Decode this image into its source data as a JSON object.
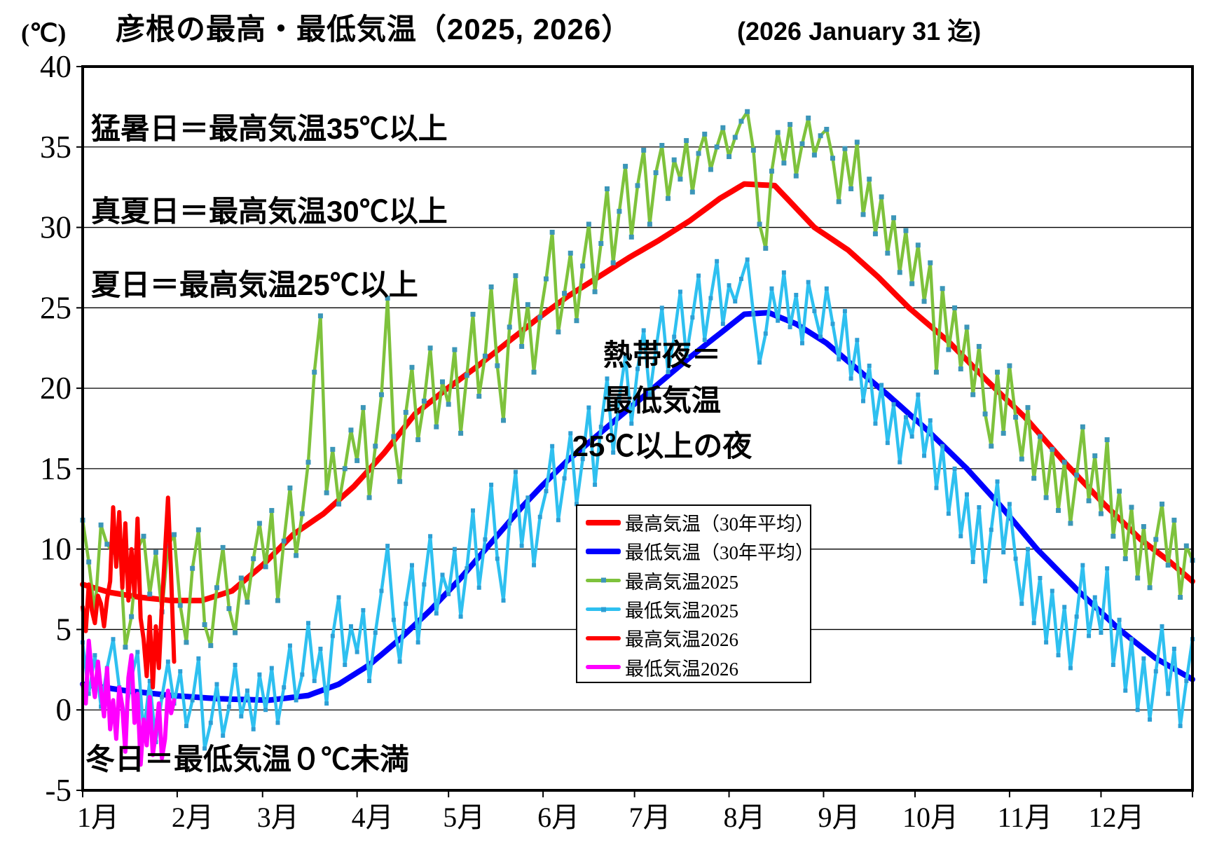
{
  "title": "彦根の最高・最低気温（2025, 2026）",
  "subtitle": "(2026 January 31 迄)",
  "unit_label": "(℃)",
  "annotations": {
    "moushobi": "猛暑日＝最高気温35℃以上",
    "manatsubi": "真夏日＝最高気温30℃以上",
    "natsubi": "夏日＝最高気温25℃以上",
    "nettaiya_lines": [
      "熱帯夜＝",
      "最低気温",
      "25℃以上の夜"
    ],
    "fuyubi": "冬日＝最低気温０℃未満"
  },
  "legend": {
    "items": [
      {
        "label": "最高気温（30年平均）",
        "color": "#FF0000",
        "line_width": 8,
        "marker_color": null
      },
      {
        "label": "最低気温（30年平均）",
        "color": "#0000FF",
        "line_width": 8,
        "marker_color": null
      },
      {
        "label": "最高気温2025",
        "color": "#7EC23C",
        "line_width": 5,
        "marker_color": "#3C96B8"
      },
      {
        "label": "最低気温2025",
        "color": "#2EC0F0",
        "line_width": 5,
        "marker_color": "#2E9FD4"
      },
      {
        "label": "最高気温2026",
        "color": "#FF0000",
        "line_width": 6,
        "marker_color": null
      },
      {
        "label": "最低気温2026",
        "color": "#FF00FF",
        "line_width": 6,
        "marker_color": null
      }
    ]
  },
  "chart_data": {
    "type": "line",
    "title": "彦根の最高・最低気温（2025, 2026）",
    "subtitle": "(2026 January 31 迄)",
    "ylabel": "(℃)",
    "ylim": [
      -5,
      40
    ],
    "ytick_step": 5,
    "ytick_labels": [
      "40",
      "35",
      "30",
      "25",
      "20",
      "15",
      "10",
      "5",
      "0",
      "-5"
    ],
    "x_months": [
      "1月",
      "2月",
      "3月",
      "4月",
      "5月",
      "6月",
      "7月",
      "8月",
      "9月",
      "10月",
      "11月",
      "12月"
    ],
    "month_start_days": [
      1,
      32,
      60,
      91,
      121,
      152,
      182,
      213,
      244,
      274,
      305,
      335
    ],
    "days_in_year": 365,
    "grid": "horizontal-only",
    "legend_position": "center-right-box",
    "series": [
      {
        "id": "avg_high",
        "name": "最高気温（30年平均）",
        "color": "#FF0000",
        "width": 8,
        "marker": null,
        "points": [
          [
            1,
            7.8
          ],
          [
            10,
            7.3
          ],
          [
            20,
            7.0
          ],
          [
            30,
            6.8
          ],
          [
            40,
            6.8
          ],
          [
            50,
            7.4
          ],
          [
            60,
            9.0
          ],
          [
            70,
            10.9
          ],
          [
            80,
            12.2
          ],
          [
            90,
            13.9
          ],
          [
            100,
            16.0
          ],
          [
            110,
            18.4
          ],
          [
            120,
            19.9
          ],
          [
            130,
            21.3
          ],
          [
            140,
            22.8
          ],
          [
            150,
            24.3
          ],
          [
            160,
            25.7
          ],
          [
            170,
            26.9
          ],
          [
            180,
            28.1
          ],
          [
            190,
            29.2
          ],
          [
            200,
            30.4
          ],
          [
            210,
            31.8
          ],
          [
            218,
            32.7
          ],
          [
            228,
            32.6
          ],
          [
            241,
            30.0
          ],
          [
            252,
            28.6
          ],
          [
            262,
            26.9
          ],
          [
            272,
            25.0
          ],
          [
            285,
            22.9
          ],
          [
            298,
            20.4
          ],
          [
            310,
            18.2
          ],
          [
            323,
            15.4
          ],
          [
            336,
            12.8
          ],
          [
            348,
            10.6
          ],
          [
            357,
            9.3
          ],
          [
            365,
            8.0
          ]
        ]
      },
      {
        "id": "avg_low",
        "name": "最低気温（30年平均）",
        "color": "#0000FF",
        "width": 8,
        "marker": null,
        "points": [
          [
            1,
            1.6
          ],
          [
            15,
            1.2
          ],
          [
            30,
            0.9
          ],
          [
            45,
            0.7
          ],
          [
            62,
            0.6
          ],
          [
            75,
            0.9
          ],
          [
            85,
            1.6
          ],
          [
            95,
            2.8
          ],
          [
            105,
            4.4
          ],
          [
            115,
            6.2
          ],
          [
            125,
            8.2
          ],
          [
            135,
            10.4
          ],
          [
            145,
            12.6
          ],
          [
            152,
            14.0
          ],
          [
            160,
            15.5
          ],
          [
            170,
            17.1
          ],
          [
            180,
            18.7
          ],
          [
            190,
            20.3
          ],
          [
            200,
            21.9
          ],
          [
            210,
            23.4
          ],
          [
            218,
            24.6
          ],
          [
            226,
            24.7
          ],
          [
            235,
            24.0
          ],
          [
            245,
            22.8
          ],
          [
            255,
            21.2
          ],
          [
            265,
            19.6
          ],
          [
            278,
            17.4
          ],
          [
            291,
            15.0
          ],
          [
            302,
            12.7
          ],
          [
            314,
            10.0
          ],
          [
            327,
            7.5
          ],
          [
            341,
            5.0
          ],
          [
            353,
            3.2
          ],
          [
            365,
            1.9
          ]
        ]
      },
      {
        "id": "high_2025",
        "name": "最高気温2025",
        "color": "#7EC23C",
        "width": 4.5,
        "marker": {
          "color": "#3C96B8",
          "size": 7
        },
        "x_start": 1,
        "x_step": 2,
        "values": [
          11.8,
          9.2,
          6.0,
          11.5,
          10.3,
          9.8,
          10.6,
          3.9,
          5.8,
          10.0,
          10.8,
          7.2,
          9.8,
          6.1,
          10.2,
          10.9,
          6.5,
          4.2,
          8.8,
          11.2,
          5.3,
          4.0,
          7.6,
          10.1,
          6.3,
          4.8,
          8.2,
          6.7,
          9.4,
          11.6,
          8.9,
          12.4,
          6.8,
          10.5,
          13.8,
          9.6,
          12.2,
          15.4,
          21.0,
          24.5,
          13.5,
          16.2,
          12.8,
          15.0,
          17.4,
          15.5,
          18.8,
          13.2,
          16.4,
          19.6,
          25.6,
          17.0,
          14.2,
          18.5,
          21.3,
          16.8,
          19.2,
          22.5,
          17.6,
          20.4,
          19.0,
          22.4,
          17.2,
          20.8,
          24.6,
          19.5,
          22.0,
          26.3,
          21.4,
          18.0,
          23.8,
          27.0,
          22.6,
          25.2,
          21.0,
          24.4,
          26.8,
          29.7,
          23.5,
          25.9,
          28.4,
          24.2,
          27.6,
          30.2,
          26.0,
          29.0,
          32.4,
          27.8,
          31.0,
          33.8,
          29.4,
          32.6,
          34.8,
          30.2,
          33.4,
          35.1,
          31.8,
          34.2,
          33.0,
          35.4,
          32.2,
          34.6,
          35.8,
          33.6,
          35.0,
          36.2,
          34.4,
          35.6,
          36.6,
          37.2,
          34.8,
          30.2,
          28.7,
          33.5,
          35.9,
          34.0,
          36.4,
          33.2,
          35.2,
          36.8,
          34.5,
          35.7,
          36.1,
          34.3,
          31.6,
          34.9,
          32.4,
          35.3,
          30.8,
          33.0,
          29.6,
          31.9,
          28.4,
          30.6,
          27.2,
          29.8,
          26.5,
          28.9,
          25.4,
          27.8,
          21.0,
          26.2,
          22.4,
          25.0,
          21.2,
          23.8,
          19.6,
          22.6,
          18.4,
          16.4,
          21.0,
          17.2,
          21.4,
          18.2,
          15.6,
          18.8,
          14.4,
          17.0,
          13.2,
          16.2,
          12.4,
          15.4,
          11.6,
          14.6,
          17.6,
          13.0,
          15.8,
          12.2,
          16.8,
          10.8,
          13.6,
          9.4,
          12.6,
          8.2,
          11.4,
          7.6,
          10.6,
          12.8,
          9.0,
          11.8,
          7.0,
          10.2,
          9.3
        ]
      },
      {
        "id": "low_2025",
        "name": "最低気温2025",
        "color": "#2EC0F0",
        "width": 4.5,
        "marker": {
          "color": "#2E9FD4",
          "size": 6
        },
        "x_start": 1,
        "x_step": 2,
        "values": [
          4.2,
          1.0,
          3.4,
          0.2,
          2.6,
          4.4,
          1.4,
          -0.6,
          2.0,
          3.6,
          -1.4,
          1.8,
          -2.0,
          0.8,
          3.0,
          0.4,
          2.4,
          -1.0,
          0.6,
          3.2,
          -2.4,
          -0.8,
          1.6,
          -1.6,
          0.2,
          2.8,
          -0.4,
          1.2,
          -1.2,
          2.2,
          0.0,
          2.6,
          -0.8,
          1.4,
          4.0,
          0.6,
          2.2,
          5.4,
          1.8,
          3.8,
          0.4,
          4.6,
          7.0,
          2.8,
          5.2,
          3.6,
          6.2,
          1.8,
          4.8,
          7.4,
          10.2,
          5.6,
          3.0,
          6.6,
          9.0,
          4.2,
          7.8,
          10.8,
          6.0,
          8.4,
          7.2,
          10.0,
          5.8,
          8.8,
          12.4,
          7.6,
          10.6,
          14.0,
          9.4,
          6.8,
          11.6,
          14.8,
          10.2,
          13.2,
          9.0,
          12.0,
          13.6,
          16.4,
          11.8,
          14.4,
          17.2,
          12.8,
          15.6,
          18.8,
          14.0,
          17.6,
          20.6,
          16.0,
          19.4,
          22.0,
          17.8,
          21.2,
          23.6,
          19.6,
          22.4,
          25.0,
          21.0,
          23.2,
          26.0,
          22.0,
          24.4,
          27.0,
          23.0,
          25.6,
          27.9,
          24.0,
          26.4,
          25.4,
          26.8,
          28.0,
          24.6,
          21.6,
          23.4,
          26.2,
          24.2,
          27.2,
          23.8,
          25.8,
          22.8,
          26.6,
          24.8,
          23.2,
          26.2,
          24.0,
          21.8,
          24.8,
          20.6,
          23.0,
          19.2,
          21.4,
          17.8,
          20.2,
          16.6,
          19.0,
          15.4,
          18.2,
          17.0,
          19.6,
          15.8,
          18.0,
          13.8,
          16.4,
          12.2,
          15.0,
          10.8,
          13.4,
          9.2,
          12.6,
          8.0,
          11.2,
          14.2,
          9.8,
          12.8,
          9.4,
          6.6,
          10.0,
          5.4,
          8.2,
          4.2,
          7.4,
          3.4,
          6.4,
          2.6,
          5.8,
          9.0,
          4.6,
          7.0,
          4.8,
          8.8,
          2.8,
          5.6,
          1.2,
          4.4,
          0.0,
          3.2,
          -0.6,
          2.4,
          5.2,
          1.0,
          3.8,
          -1.0,
          1.8,
          4.4
        ]
      },
      {
        "id": "high_2026",
        "name": "最高気温2026",
        "color": "#FF0000",
        "width": 6,
        "marker": null,
        "x_start": 1,
        "x_step": 1,
        "values": [
          6.4,
          4.9,
          7.8,
          6.2,
          5.4,
          7.1,
          6.6,
          5.2,
          6.9,
          8.0,
          12.6,
          8.9,
          12.3,
          7.6,
          11.6,
          6.8,
          10.0,
          7.1,
          11.9,
          5.7,
          4.4,
          2.1,
          5.8,
          1.4,
          5.2,
          2.6,
          6.5,
          9.8,
          13.2,
          8.4,
          3.0
        ]
      },
      {
        "id": "low_2026",
        "name": "最低気温2026",
        "color": "#FF00FF",
        "width": 6,
        "marker": null,
        "x_start": 1,
        "x_step": 1,
        "values": [
          1.6,
          0.4,
          4.3,
          2.2,
          0.8,
          3.0,
          1.2,
          -0.4,
          2.6,
          -1.2,
          0.6,
          -1.8,
          1.4,
          0.2,
          -2.6,
          2.0,
          3.4,
          -0.8,
          1.0,
          -3.4,
          -0.6,
          -2.2,
          0.8,
          -2.8,
          -1.4,
          0.4,
          -3.0,
          -1.8,
          1.2,
          -0.2,
          0.6
        ]
      }
    ]
  }
}
